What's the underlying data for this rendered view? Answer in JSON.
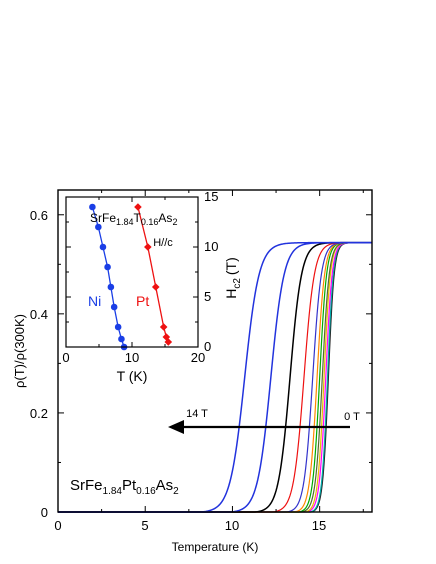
{
  "chart_data": [
    {
      "type": "line",
      "xlabel": "Temperature (K)",
      "ylabel": "ρ(T)/ρ(300K)",
      "xlim": [
        0,
        18
      ],
      "ylim": [
        0,
        0.65
      ],
      "xticks": [
        "0",
        "5",
        "10",
        "15"
      ],
      "yticks": [
        "0",
        "0.2",
        "0.4",
        "0.6"
      ],
      "annotations": {
        "compound": {
          "base": "SrFe",
          "s1": "1.84",
          "m1": "Pt",
          "s2": "0.16",
          "m2": "As",
          "s3": "2"
        },
        "arrow_start_label": "0 T",
        "arrow_end_label": "14 T"
      },
      "series": [
        {
          "values": {
            "Tc": 15.5,
            "width": 0.5,
            "rn": 0.545
          },
          "color": "#222222"
        },
        {
          "values": {
            "Tc": 15.45,
            "width": 0.5,
            "rn": 0.545
          },
          "color": "#00aaaa"
        },
        {
          "values": {
            "Tc": 15.35,
            "width": 0.55,
            "rn": 0.545
          },
          "color": "#ff00ff"
        },
        {
          "values": {
            "Tc": 15.25,
            "width": 0.55,
            "rn": 0.545
          },
          "color": "#e6c000"
        },
        {
          "values": {
            "Tc": 15.15,
            "width": 0.6,
            "rn": 0.545
          },
          "color": "#556b2f"
        },
        {
          "values": {
            "Tc": 15.0,
            "width": 0.6,
            "rn": 0.545
          },
          "color": "#00aa00"
        },
        {
          "values": {
            "Tc": 14.85,
            "width": 0.65,
            "rn": 0.545
          },
          "color": "#ff8800"
        },
        {
          "values": {
            "Tc": 14.6,
            "width": 0.75,
            "rn": 0.545
          },
          "color": "#3333cc"
        },
        {
          "values": {
            "Tc": 14.1,
            "width": 0.9,
            "rn": 0.545
          },
          "color": "#ee1111"
        },
        {
          "values": {
            "Tc": 13.3,
            "width": 1.0,
            "rn": 0.545
          },
          "color": "#000000"
        },
        {
          "values": {
            "Tc": 12.2,
            "width": 1.15,
            "rn": 0.545
          },
          "color": "#2233dd"
        },
        {
          "values": {
            "Tc": 10.7,
            "width": 1.25,
            "rn": 0.545
          },
          "color": "#2233dd"
        }
      ]
    },
    {
      "type": "line",
      "xlabel": "T (K)",
      "ylabel": "Hc2 (T)",
      "xlim": [
        0,
        20
      ],
      "ylim": [
        0,
        15
      ],
      "xticks": [
        "0",
        "10",
        "20"
      ],
      "yticks": [
        "0",
        "5",
        "10",
        "15"
      ],
      "annotations": {
        "compound": {
          "base": "SrFe",
          "s1": "1.84",
          "m1": "T",
          "s2": "0.16",
          "m2": "As",
          "s3": "2"
        },
        "field_direction": "H//c",
        "ylabel_main": "H",
        "ylabel_sub": "c2",
        "ylabel_unit": "(T)"
      },
      "series": [
        {
          "name": "Ni",
          "color": "#1a3ee6",
          "marker": "circle",
          "points": [
            [
              4.0,
              14.0
            ],
            [
              4.9,
              12.0
            ],
            [
              5.6,
              10.0
            ],
            [
              6.3,
              8.0
            ],
            [
              6.8,
              6.0
            ],
            [
              7.3,
              4.0
            ],
            [
              7.9,
              2.0
            ],
            [
              8.4,
              0.8
            ],
            [
              8.8,
              0.0
            ]
          ]
        },
        {
          "name": "Pt",
          "color": "#ee1111",
          "marker": "diamond",
          "points": [
            [
              10.9,
              14.0
            ],
            [
              12.4,
              10.0
            ],
            [
              13.6,
              6.0
            ],
            [
              14.8,
              2.0
            ],
            [
              15.2,
              1.0
            ],
            [
              15.5,
              0.5
            ]
          ]
        }
      ]
    }
  ]
}
